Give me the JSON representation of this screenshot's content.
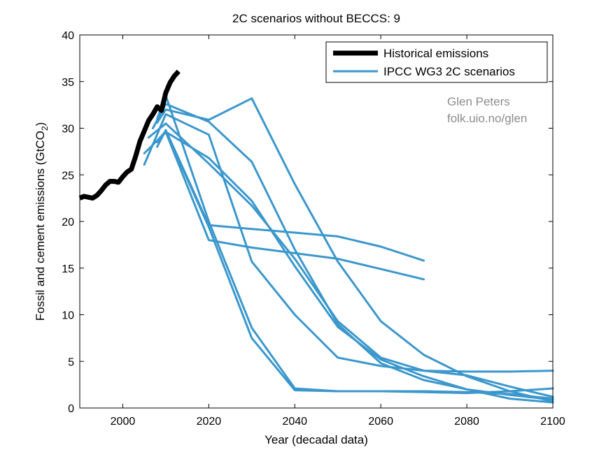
{
  "chart_data": {
    "type": "line",
    "title": "2C scenarios without BECCS: 9",
    "xlabel": "Year (decadal data)",
    "ylabel_main": "Fossil and cement emissions (GtCO",
    "ylabel_sub": "2",
    "ylabel_close": ")",
    "xlim": [
      1990,
      2100
    ],
    "ylim": [
      0,
      40
    ],
    "xticks": [
      2000,
      2020,
      2040,
      2060,
      2080,
      2100
    ],
    "yticks": [
      0,
      5,
      10,
      15,
      20,
      25,
      30,
      35,
      40
    ],
    "legend": {
      "position": "top-right",
      "entries": [
        "Historical emissions",
        "IPCC WG3 2C scenarios"
      ]
    },
    "credit": [
      "Glen Peters",
      "folk.uio.no/glen"
    ],
    "colors": {
      "historical": "#000000",
      "scenario": "#3b97cc"
    },
    "historical": {
      "name": "Historical emissions",
      "x": [
        1990,
        1991,
        1992,
        1993,
        1994,
        1995,
        1996,
        1997,
        1998,
        1999,
        2000,
        2001,
        2002,
        2003,
        2004,
        2005,
        2006,
        2007,
        2008,
        2009,
        2010,
        2011,
        2012,
        2013
      ],
      "y": [
        22.5,
        22.7,
        22.6,
        22.5,
        22.8,
        23.3,
        23.9,
        24.3,
        24.3,
        24.2,
        24.8,
        25.3,
        25.6,
        27.0,
        28.6,
        29.7,
        30.8,
        31.5,
        32.3,
        31.9,
        33.8,
        34.9,
        35.6,
        36.1
      ]
    },
    "series": [
      {
        "name": "IPCC WG3 2C scenarios",
        "x": [
          2005,
          2010,
          2020,
          2030,
          2040,
          2050,
          2060,
          2070,
          2080,
          2090,
          2100
        ],
        "y": [
          26.1,
          31.5,
          29.3,
          15.7,
          10.0,
          5.4,
          4.5,
          4.0,
          3.9,
          3.9,
          4.0
        ]
      },
      {
        "name": "IPCC WG3 2C scenarios",
        "x": [
          2005,
          2010,
          2020,
          2030,
          2040,
          2050,
          2060,
          2070,
          2080,
          2090,
          2100
        ],
        "y": [
          27.3,
          29.6,
          26.8,
          22.2,
          15.2,
          8.7,
          5.2,
          3.4,
          2.0,
          1.0,
          0.6
        ]
      },
      {
        "name": "IPCC WG3 2C scenarios",
        "x": [
          2006,
          2010,
          2020,
          2030,
          2040,
          2050,
          2060,
          2070,
          2080,
          2090,
          2100
        ],
        "y": [
          29.0,
          30.5,
          26.2,
          21.7,
          16.0,
          9.3,
          5.4,
          4.0,
          3.5,
          2.3,
          1.2
        ]
      },
      {
        "name": "IPCC WG3 2C scenarios",
        "x": [
          2007,
          2010,
          2020,
          2030,
          2040,
          2050,
          2060,
          2070,
          2080,
          2090,
          2100
        ],
        "y": [
          30.0,
          32.6,
          30.7,
          26.4,
          17.0,
          9.0,
          4.8,
          3.0,
          2.0,
          1.4,
          0.9
        ]
      },
      {
        "name": "IPCC WG3 2C scenarios",
        "x": [
          2008,
          2010,
          2020,
          2030,
          2040,
          2050,
          2060,
          2070,
          2080,
          2090,
          2100
        ],
        "y": [
          30.6,
          32.0,
          30.9,
          33.2,
          24.0,
          15.7,
          9.3,
          5.7,
          3.4,
          1.8,
          0.7
        ]
      },
      {
        "name": "IPCC WG3 2C scenarios",
        "x": [
          2008,
          2010,
          2020,
          2030,
          2040,
          2050,
          2060,
          2070,
          2080,
          2090,
          2100
        ],
        "y": [
          31.0,
          33.5,
          20.0,
          8.6,
          2.1,
          1.8,
          1.8,
          1.7,
          1.6,
          1.8,
          2.1
        ]
      },
      {
        "name": "IPCC WG3 2C scenarios",
        "x": [
          2008,
          2010,
          2020,
          2030,
          2040,
          2050,
          2060,
          2070,
          2080,
          2090,
          2100
        ],
        "y": [
          28.6,
          29.7,
          19.4,
          7.5,
          1.9,
          1.8,
          1.8,
          1.8,
          1.7,
          1.5,
          1.0
        ]
      },
      {
        "name": "IPCC WG3 2C scenarios",
        "x": [
          2008,
          2010,
          2020,
          2030,
          2040,
          2050,
          2060,
          2070
        ],
        "y": [
          28.0,
          29.8,
          19.6,
          19.2,
          18.8,
          18.4,
          17.3,
          15.8
        ]
      },
      {
        "name": "IPCC WG3 2C scenarios",
        "x": [
          2008,
          2010,
          2020,
          2030,
          2040,
          2050,
          2060,
          2070
        ],
        "y": [
          28.5,
          29.6,
          18.0,
          17.2,
          16.6,
          16.0,
          14.9,
          13.8
        ]
      }
    ]
  }
}
